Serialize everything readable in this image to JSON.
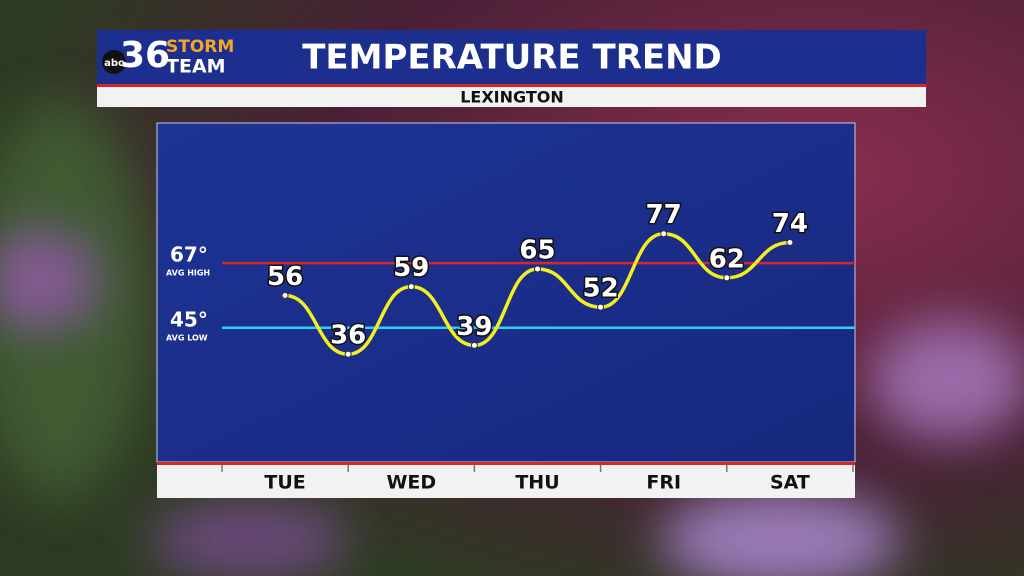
{
  "chart_data": {
    "type": "line",
    "branding": {
      "network": "abc",
      "channel": "36",
      "line1": "STORM",
      "line2": "TEAM"
    },
    "title": "TEMPERATURE TREND",
    "subtitle": "LEXINGTON",
    "categories": [
      "TUE",
      "WED",
      "THU",
      "FRI",
      "SAT"
    ],
    "xlim": [
      0,
      5
    ],
    "ylim": [
      0,
      114
    ],
    "series": [
      {
        "color": "#f4f01c",
        "x": [
          0.5,
          1,
          1.5,
          2,
          2.5,
          3,
          3.5,
          4,
          4.5
        ],
        "values": [
          56,
          36,
          59,
          39,
          65,
          52,
          77,
          62,
          74
        ]
      }
    ],
    "reference_lines": [
      {
        "name": "AVG HIGH",
        "value": 67,
        "value_label": "67°",
        "color": "#d8262e"
      },
      {
        "name": "AVG LOW",
        "value": 45,
        "value_label": "45°",
        "color": "#27d3f0"
      }
    ]
  }
}
